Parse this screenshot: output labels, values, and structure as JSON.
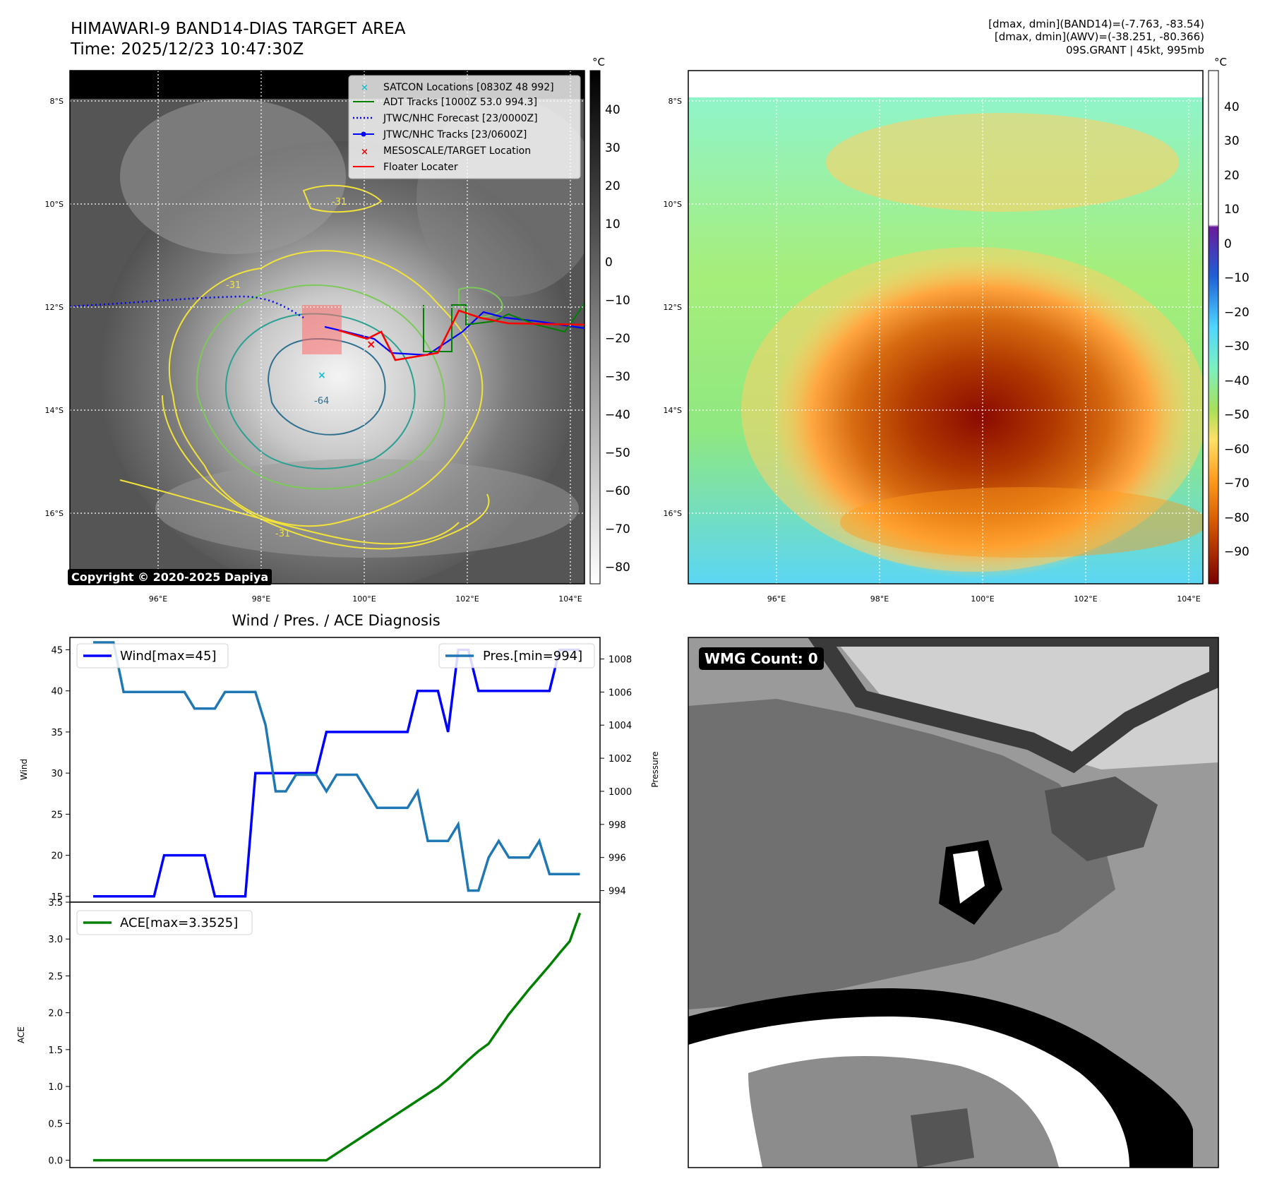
{
  "header": {
    "title_line1": "HIMAWARI-9 BAND14-DIAS TARGET AREA",
    "title_line2": "Time: 2025/12/23 10:47:30Z",
    "info_line1": "[dmax, dmin](BAND14)=(-7.763, -83.54)",
    "info_line2": "[dmax, dmin](AWV)=(-38.251, -80.366)",
    "info_line3": "09S.GRANT | 45kt, 995mb"
  },
  "maps": {
    "lat_labels": [
      "8°S",
      "10°S",
      "12°S",
      "14°S",
      "16°S"
    ],
    "lon_labels": [
      "96°E",
      "98°E",
      "100°E",
      "102°E",
      "104°E"
    ],
    "copyright": "Copyright © 2020-2025 Dapiya",
    "contour_labels": [
      "-31",
      "-31",
      "-64",
      "-31"
    ],
    "colors": {
      "contour_outer": "#f2e33a",
      "contour_mid": "#7cc95a",
      "contour_inner": "#2aa092",
      "contour_core": "#2e6f8e"
    }
  },
  "legend": {
    "items": [
      {
        "label": "SATCON Locations [0830Z 48 992]",
        "symbol": "x",
        "color": "#17becf"
      },
      {
        "label": "ADT Tracks [1000Z 53.0 994.3]",
        "symbol": "line",
        "color": "#008000"
      },
      {
        "label": "JTWC/NHC Forecast [23/0000Z]",
        "symbol": "dotted",
        "color": "#0000ff"
      },
      {
        "label": "JTWC/NHC Tracks [23/0600Z]",
        "symbol": "line-dot",
        "color": "#0000ff"
      },
      {
        "label": "MESOSCALE/TARGET Location",
        "symbol": "x",
        "color": "#ff0000"
      },
      {
        "label": "Floater Locater",
        "symbol": "line",
        "color": "#ff0000"
      }
    ]
  },
  "colorbar_gray": {
    "unit": "°C",
    "ticks": [
      "40",
      "30",
      "20",
      "10",
      "0",
      "−10",
      "−20",
      "−30",
      "−40",
      "−50",
      "−60",
      "−70",
      "−80"
    ]
  },
  "colorbar_color": {
    "unit": "°C",
    "ticks": [
      "40",
      "30",
      "20",
      "10",
      "0",
      "−10",
      "−20",
      "−30",
      "−40",
      "−50",
      "−60",
      "−70",
      "−80",
      "−90"
    ]
  },
  "diagnosis": {
    "title": "Wind / Pres. / ACE Diagnosis"
  },
  "wmg": {
    "badge": "WMG Count: 0"
  },
  "chart_data": [
    {
      "type": "line",
      "title": "Wind / Pres. / ACE Diagnosis",
      "ylabel": "Wind",
      "y2label": "Pressure",
      "ylim": [
        14.3,
        46.5
      ],
      "y2lim": [
        993.3,
        1009.3
      ],
      "yticks": [
        15,
        20,
        25,
        30,
        35,
        40,
        45
      ],
      "y2ticks": [
        994,
        996,
        998,
        1000,
        1002,
        1004,
        1006,
        1008
      ],
      "x": [
        0,
        1,
        2,
        3,
        4,
        5,
        6,
        7,
        8,
        9,
        10,
        11,
        12,
        13,
        14,
        15,
        16,
        17,
        18,
        19,
        20,
        21,
        22,
        23,
        24,
        25,
        26,
        27,
        28,
        29,
        30,
        31,
        32,
        33,
        34,
        35,
        36,
        37,
        38,
        39,
        40,
        41,
        42,
        43,
        44,
        45,
        46,
        47,
        48
      ],
      "series": [
        {
          "name": "Wind[max=45]",
          "axis": "left",
          "color": "#0000ff",
          "values": [
            15,
            15,
            15,
            15,
            15,
            15,
            15,
            20,
            20,
            20,
            20,
            20,
            15,
            15,
            15,
            15,
            30,
            30,
            30,
            30,
            30,
            30,
            30,
            35,
            35,
            35,
            35,
            35,
            35,
            35,
            35,
            35,
            40,
            40,
            40,
            35,
            45,
            45,
            40,
            40,
            40,
            40,
            40,
            40,
            40,
            40,
            45,
            45,
            45
          ]
        },
        {
          "name": "Pres.[min=994]",
          "axis": "right",
          "color": "#1f77b4",
          "values": [
            1009,
            1009,
            1009,
            1006,
            1006,
            1006,
            1006,
            1006,
            1006,
            1006,
            1005,
            1005,
            1005,
            1006,
            1006,
            1006,
            1006,
            1004,
            1000,
            1000,
            1001,
            1001,
            1001,
            1000,
            1001,
            1001,
            1001,
            1000,
            999,
            999,
            999,
            999,
            1000,
            997,
            997,
            997,
            998,
            994,
            994,
            996,
            997,
            996,
            996,
            996,
            997,
            995,
            995,
            995,
            995
          ]
        }
      ]
    },
    {
      "type": "line",
      "ylabel": "ACE",
      "ylim": [
        -0.1,
        3.5
      ],
      "yticks": [
        "0.0",
        "0.5",
        "1.0",
        "1.5",
        "2.0",
        "2.5",
        "3.0",
        "3.5"
      ],
      "x": [
        0,
        1,
        2,
        3,
        4,
        5,
        6,
        7,
        8,
        9,
        10,
        11,
        12,
        13,
        14,
        15,
        16,
        17,
        18,
        19,
        20,
        21,
        22,
        23,
        24,
        25,
        26,
        27,
        28,
        29,
        30,
        31,
        32,
        33,
        34,
        35,
        36,
        37,
        38,
        39,
        40,
        41,
        42,
        43,
        44,
        45,
        46,
        47,
        48
      ],
      "series": [
        {
          "name": "ACE[max=3.3525]",
          "color": "#008000",
          "values": [
            0,
            0,
            0,
            0,
            0,
            0,
            0,
            0,
            0,
            0,
            0,
            0,
            0,
            0,
            0,
            0,
            0,
            0,
            0,
            0,
            0,
            0,
            0,
            0,
            0.09,
            0.18,
            0.27,
            0.36,
            0.45,
            0.54,
            0.63,
            0.72,
            0.81,
            0.9,
            0.99,
            1.1,
            1.23,
            1.36,
            1.48,
            1.58,
            1.78,
            1.98,
            2.15,
            2.32,
            2.48,
            2.64,
            2.81,
            2.97,
            3.3525
          ]
        }
      ]
    }
  ]
}
